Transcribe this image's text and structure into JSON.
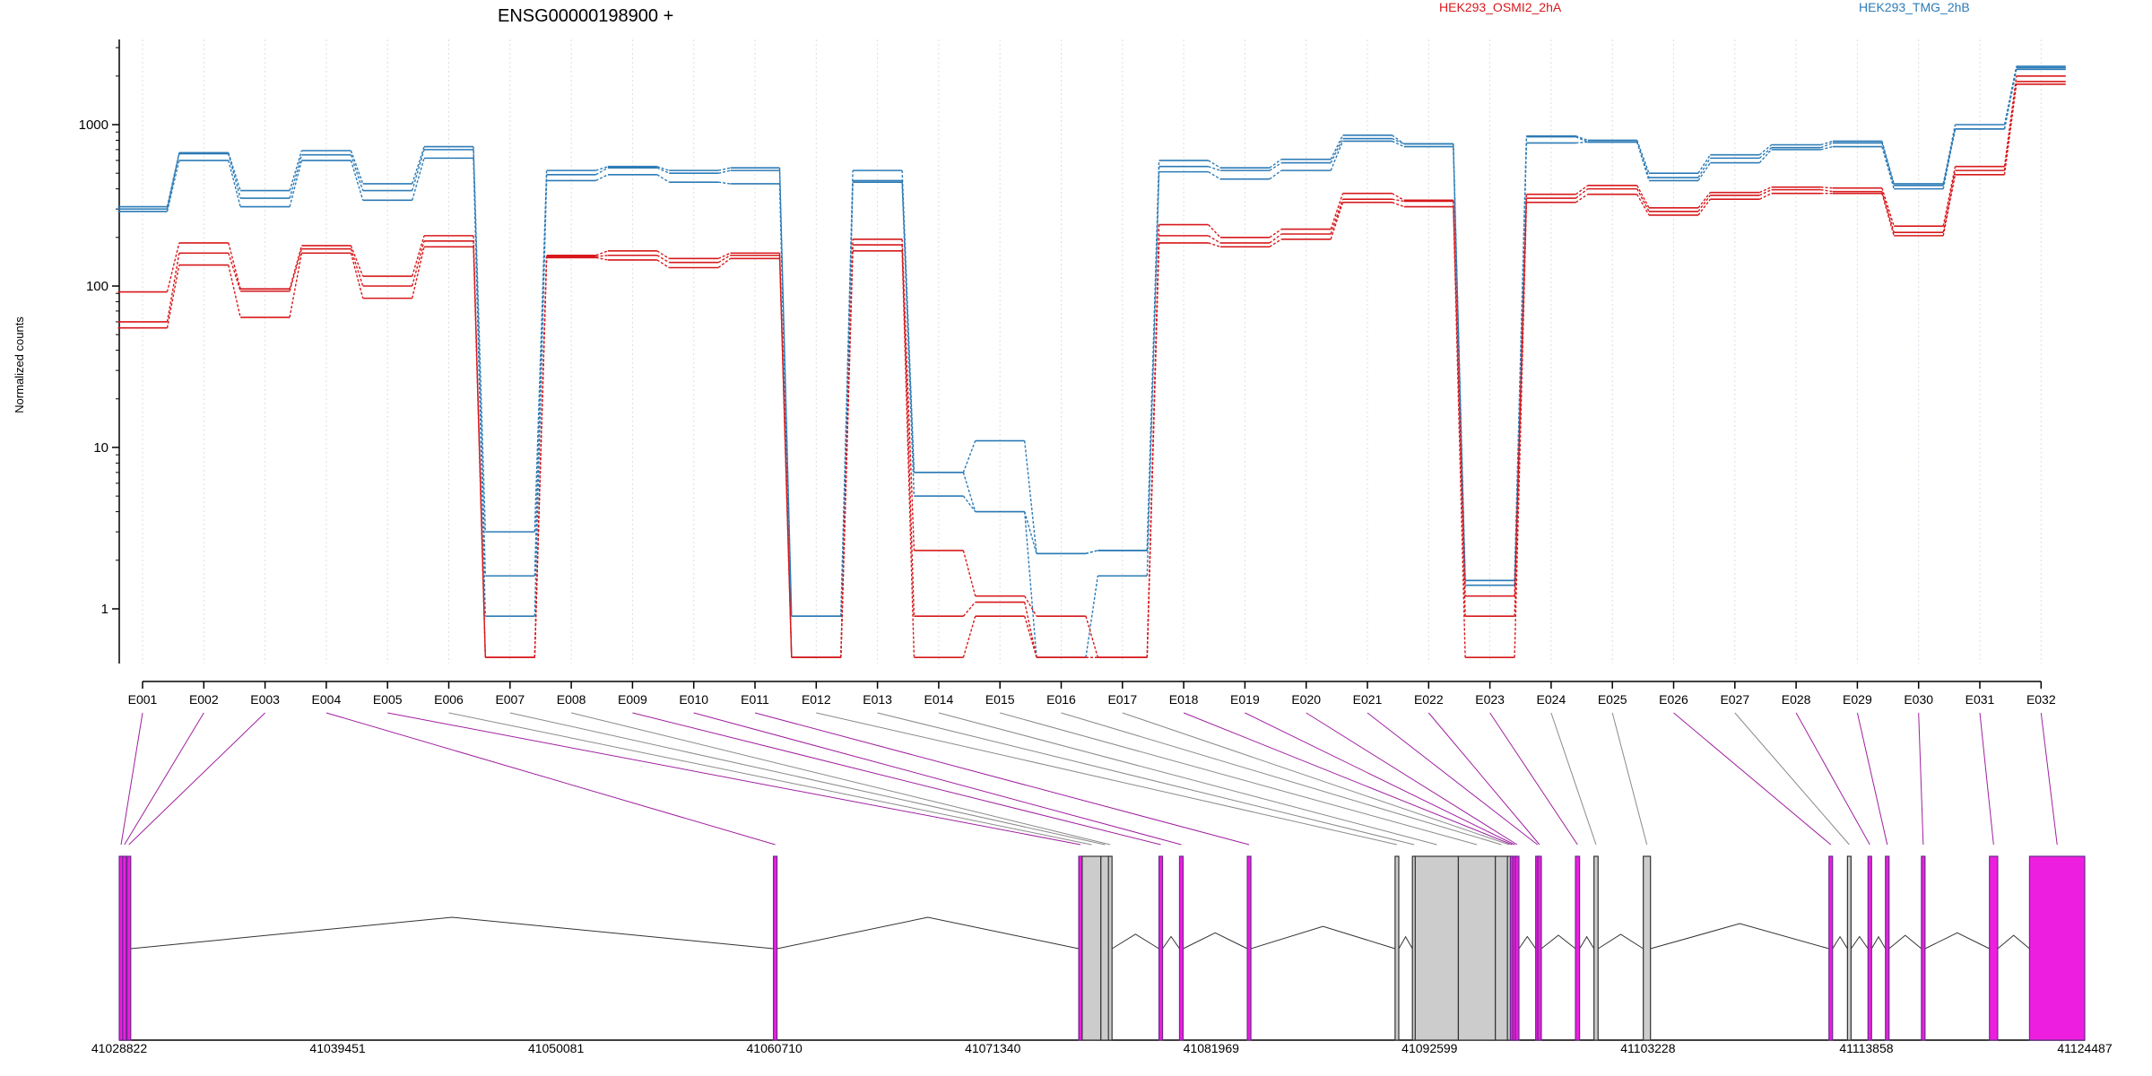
{
  "chart_data": {
    "type": "line",
    "title": "ENSG00000198900 +",
    "ylabel": "Normalized counts",
    "yscale": "log",
    "ylim": [
      0.5,
      3000
    ],
    "y_ticks": [
      1,
      10,
      100,
      1000
    ],
    "y_tick_labels": [
      "1",
      "10",
      "100",
      "1000"
    ],
    "categories": [
      "E001",
      "E002",
      "E003",
      "E004",
      "E005",
      "E006",
      "E007",
      "E008",
      "E009",
      "E010",
      "E011",
      "E012",
      "E013",
      "E014",
      "E015",
      "E016",
      "E017",
      "E018",
      "E019",
      "E020",
      "E021",
      "E022",
      "E023",
      "E024",
      "E025",
      "E026",
      "E027",
      "E028",
      "E029",
      "E030",
      "E031",
      "E032"
    ],
    "legend": [
      {
        "name": "HEK293_OSMI2_2hA",
        "color": "#d7191c"
      },
      {
        "name": "HEK293_TMG_2hB",
        "color": "#2c7bb6"
      }
    ],
    "series": [
      {
        "group": "HEK293_TMG_2hB",
        "color": "#2c7bb6",
        "values": [
          310,
          670,
          390,
          690,
          430,
          730,
          3,
          520,
          550,
          520,
          540,
          0.9,
          520,
          7,
          11,
          2.2,
          2.3,
          600,
          540,
          610,
          860,
          760,
          1.5,
          850,
          800,
          500,
          650,
          750,
          790,
          430,
          1000,
          2300
        ]
      },
      {
        "group": "HEK293_TMG_2hB",
        "color": "#2c7bb6",
        "values": [
          300,
          660,
          350,
          650,
          390,
          700,
          1.6,
          490,
          540,
          500,
          520,
          0.9,
          450,
          7,
          4,
          2.2,
          2.3,
          550,
          520,
          580,
          820,
          760,
          1.5,
          840,
          780,
          470,
          620,
          720,
          770,
          420,
          940,
          2250
        ]
      },
      {
        "group": "HEK293_TMG_2hB",
        "color": "#2c7bb6",
        "values": [
          290,
          600,
          310,
          600,
          340,
          620,
          0.9,
          450,
          490,
          440,
          430,
          0.5,
          440,
          5,
          4,
          0.5,
          1.6,
          510,
          460,
          520,
          790,
          730,
          1.4,
          770,
          780,
          450,
          580,
          700,
          730,
          400,
          940,
          2200
        ]
      },
      {
        "group": "HEK293_OSMI2_2hA",
        "color": "#d7191c",
        "values": [
          92,
          185,
          96,
          178,
          115,
          205,
          0.5,
          155,
          165,
          148,
          160,
          0.5,
          195,
          2.3,
          1.2,
          0.9,
          0.5,
          240,
          200,
          225,
          375,
          340,
          1.2,
          370,
          420,
          305,
          380,
          410,
          405,
          235,
          550,
          2000
        ]
      },
      {
        "group": "HEK293_OSMI2_2hA",
        "color": "#d7191c",
        "values": [
          60,
          160,
          93,
          170,
          100,
          190,
          0.5,
          152,
          155,
          140,
          155,
          0.5,
          180,
          0.9,
          1.1,
          0.5,
          0.5,
          205,
          185,
          210,
          345,
          335,
          0.9,
          350,
          400,
          290,
          365,
          395,
          385,
          215,
          520,
          1850
        ]
      },
      {
        "group": "HEK293_OSMI2_2hA",
        "color": "#d7191c",
        "values": [
          55,
          135,
          64,
          160,
          84,
          175,
          0.5,
          150,
          145,
          130,
          148,
          0.5,
          165,
          0.5,
          0.9,
          0.5,
          0.5,
          185,
          175,
          195,
          330,
          310,
          0.5,
          330,
          370,
          275,
          345,
          375,
          375,
          205,
          490,
          1780
        ]
      }
    ],
    "genomic_axis": {
      "start": 41028822,
      "end": 41124487,
      "tick_labels": [
        "41028822",
        "41039451",
        "41050081",
        "41060710",
        "41071340",
        "41081969",
        "41092599",
        "41103228",
        "41113858",
        "41124487"
      ]
    },
    "exons": [
      {
        "id": "E001",
        "start": 41028822,
        "end": 41029000,
        "significant": true
      },
      {
        "id": "E002",
        "start": 41029000,
        "end": 41029150,
        "significant": true
      },
      {
        "id": "E003",
        "start": 41029200,
        "end": 41029380,
        "significant": true
      },
      {
        "id": "E004",
        "start": 41060710,
        "end": 41060790,
        "significant": true
      },
      {
        "id": "E005",
        "start": 41075530,
        "end": 41075690,
        "significant": true
      },
      {
        "id": "E006",
        "start": 41075690,
        "end": 41076600,
        "significant": false
      },
      {
        "id": "E007",
        "start": 41076600,
        "end": 41077000,
        "significant": false
      },
      {
        "id": "E008",
        "start": 41077000,
        "end": 41077110,
        "significant": false
      },
      {
        "id": "E009",
        "start": 41079450,
        "end": 41079580,
        "significant": true
      },
      {
        "id": "E010",
        "start": 41080450,
        "end": 41080580,
        "significant": true
      },
      {
        "id": "E011",
        "start": 41083750,
        "end": 41083880,
        "significant": true
      },
      {
        "id": "E012",
        "start": 41090920,
        "end": 41091100,
        "significant": false
      },
      {
        "id": "E013",
        "start": 41091800,
        "end": 41091900,
        "significant": false
      },
      {
        "id": "E014",
        "start": 41091900,
        "end": 41094000,
        "significant": false
      },
      {
        "id": "E015",
        "start": 41094000,
        "end": 41095800,
        "significant": false
      },
      {
        "id": "E016",
        "start": 41095800,
        "end": 41096400,
        "significant": false
      },
      {
        "id": "E017",
        "start": 41096400,
        "end": 41096550,
        "significant": false
      },
      {
        "id": "E018",
        "start": 41096550,
        "end": 41096680,
        "significant": true
      },
      {
        "id": "E019",
        "start": 41096680,
        "end": 41096800,
        "significant": true
      },
      {
        "id": "E020",
        "start": 41096800,
        "end": 41096920,
        "significant": true
      },
      {
        "id": "E021",
        "start": 41097800,
        "end": 41097900,
        "significant": true
      },
      {
        "id": "E022",
        "start": 41097900,
        "end": 41098000,
        "significant": true
      },
      {
        "id": "E023",
        "start": 41099700,
        "end": 41099900,
        "significant": true
      },
      {
        "id": "E024",
        "start": 41100600,
        "end": 41100800,
        "significant": false
      },
      {
        "id": "E025",
        "start": 41103000,
        "end": 41103350,
        "significant": false
      },
      {
        "id": "E026",
        "start": 41112050,
        "end": 41112200,
        "significant": true
      },
      {
        "id": "E027",
        "start": 41112950,
        "end": 41113100,
        "significant": false
      },
      {
        "id": "E028",
        "start": 41113950,
        "end": 41114100,
        "significant": true
      },
      {
        "id": "E029",
        "start": 41114800,
        "end": 41114950,
        "significant": true
      },
      {
        "id": "E030",
        "start": 41116550,
        "end": 41116700,
        "significant": true
      },
      {
        "id": "E031",
        "start": 41119850,
        "end": 41120250,
        "significant": true
      },
      {
        "id": "E032",
        "start": 41121800,
        "end": 41124487,
        "significant": true
      }
    ],
    "colors": {
      "sig_link": "#a020a0",
      "nonsig_link": "#8a8a8a",
      "sig_exon_fill": "#ee1ee0",
      "sig_exon_stroke": "#6a2a8a",
      "nonsig_exon_fill": "#cccccc",
      "grid": "#dcdcec"
    }
  }
}
